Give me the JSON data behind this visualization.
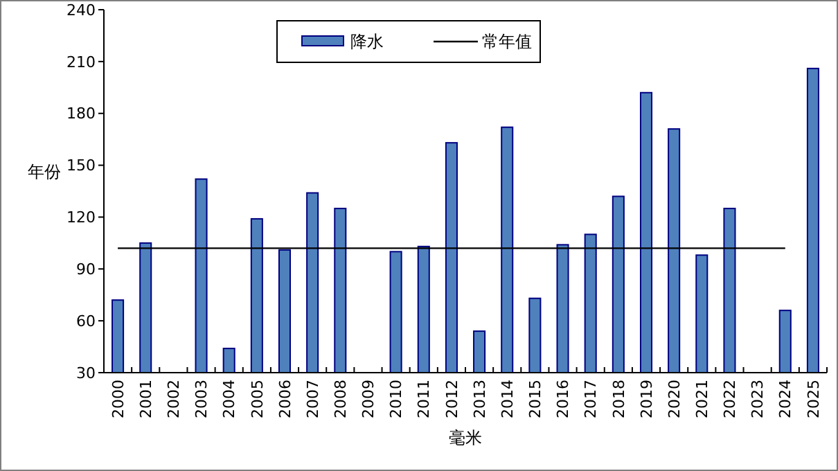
{
  "chart_data": {
    "type": "bar",
    "xlabel": "毫米",
    "ylabel": "年份",
    "categories": [
      "2000",
      "2001",
      "2002",
      "2003",
      "2004",
      "2005",
      "2006",
      "2007",
      "2008",
      "2009",
      "2010",
      "2011",
      "2012",
      "2013",
      "2014",
      "2015",
      "2016",
      "2017",
      "2018",
      "2019",
      "2020",
      "2021",
      "2022",
      "2023",
      "2024",
      "2025"
    ],
    "series": [
      {
        "name": "降水",
        "color": "#4f81bd",
        "values": [
          72,
          105,
          null,
          142,
          44,
          119,
          101,
          134,
          125,
          null,
          100,
          103,
          163,
          54,
          172,
          73,
          104,
          110,
          132,
          192,
          171,
          98,
          125,
          null,
          66,
          206
        ]
      },
      {
        "name": "常年值",
        "type": "line",
        "color": "#000000",
        "values": [
          102,
          102,
          102,
          102,
          102,
          102,
          102,
          102,
          102,
          102,
          102,
          102,
          102,
          102,
          102,
          102,
          102,
          102,
          102,
          102,
          102,
          102,
          102,
          102,
          102,
          null
        ]
      }
    ],
    "ylim": [
      30,
      240
    ],
    "yticks": [
      30,
      60,
      90,
      120,
      150,
      180,
      210,
      240
    ],
    "grid": false,
    "legend": "top",
    "marker": "none",
    "line_style": "solid"
  }
}
